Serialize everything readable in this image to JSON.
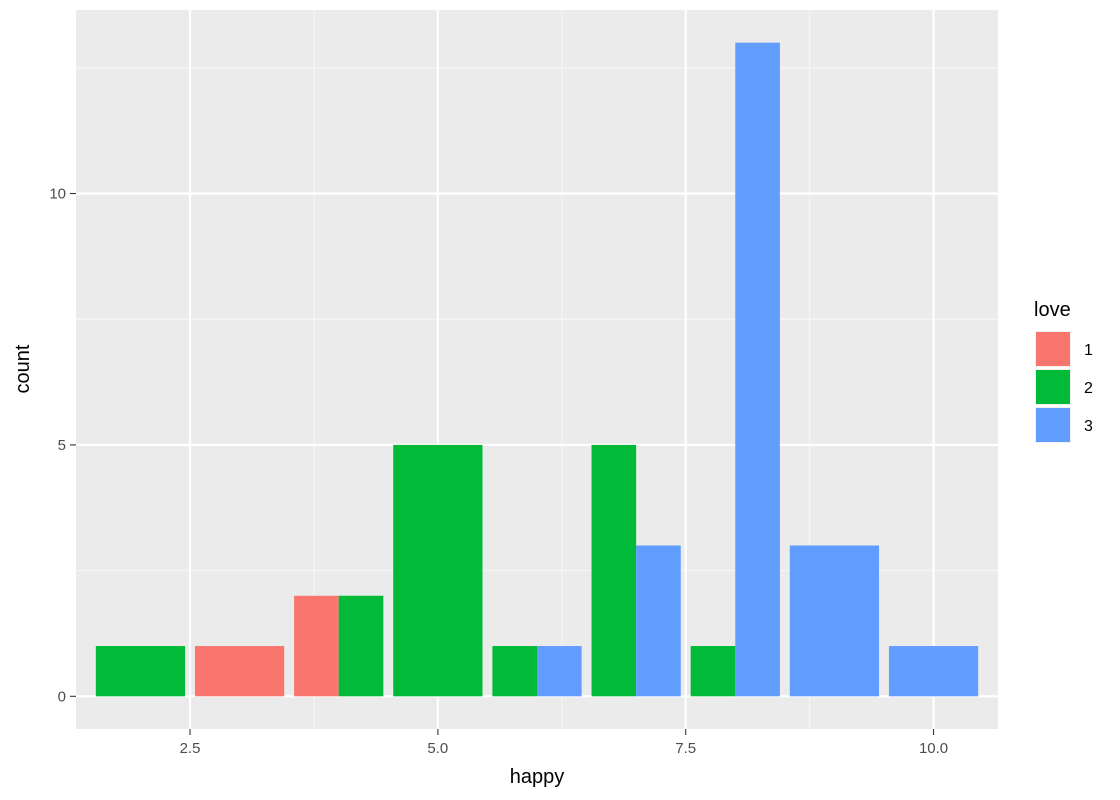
{
  "chart_data": {
    "type": "bar",
    "position": "dodge",
    "xlabel": "happy",
    "ylabel": "count",
    "xlim": [
      1.35,
      10.65
    ],
    "ylim": [
      -0.65,
      13.65
    ],
    "x_ticks": [
      {
        "value": 2.5,
        "label": "2.5"
      },
      {
        "value": 5.0,
        "label": "5.0"
      },
      {
        "value": 7.5,
        "label": "7.5"
      },
      {
        "value": 10.0,
        "label": "10.0"
      }
    ],
    "y_ticks": [
      {
        "value": 0,
        "label": "0"
      },
      {
        "value": 5,
        "label": "5"
      },
      {
        "value": 10,
        "label": "10"
      }
    ],
    "bar_width": 0.9,
    "legend": {
      "title": "love",
      "placement": "right",
      "entries": [
        {
          "label": "1",
          "color": "#F8766D"
        },
        {
          "label": "2",
          "color": "#00BA38"
        },
        {
          "label": "3",
          "color": "#619CFF"
        }
      ]
    },
    "bars": [
      {
        "happy": 2,
        "love": "2",
        "count": 1,
        "group_index": 0,
        "group_size": 1
      },
      {
        "happy": 3,
        "love": "1",
        "count": 1,
        "group_index": 0,
        "group_size": 1
      },
      {
        "happy": 4,
        "love": "1",
        "count": 2,
        "group_index": 0,
        "group_size": 2
      },
      {
        "happy": 4,
        "love": "2",
        "count": 2,
        "group_index": 1,
        "group_size": 2
      },
      {
        "happy": 5,
        "love": "2",
        "count": 5,
        "group_index": 0,
        "group_size": 1
      },
      {
        "happy": 6,
        "love": "2",
        "count": 1,
        "group_index": 0,
        "group_size": 2
      },
      {
        "happy": 6,
        "love": "3",
        "count": 1,
        "group_index": 1,
        "group_size": 2
      },
      {
        "happy": 7,
        "love": "2",
        "count": 5,
        "group_index": 0,
        "group_size": 2
      },
      {
        "happy": 7,
        "love": "3",
        "count": 3,
        "group_index": 1,
        "group_size": 2
      },
      {
        "happy": 8,
        "love": "2",
        "count": 1,
        "group_index": 0,
        "group_size": 2
      },
      {
        "happy": 8,
        "love": "3",
        "count": 13,
        "group_index": 1,
        "group_size": 2
      },
      {
        "happy": 9,
        "love": "3",
        "count": 3,
        "group_index": 0,
        "group_size": 1
      },
      {
        "happy": 10,
        "love": "3",
        "count": 1,
        "group_index": 0,
        "group_size": 1
      }
    ],
    "colors": {
      "panel_background": "#EBEBEB",
      "grid_major": "#FFFFFF",
      "grid_minor": "#F7F7F7",
      "tick_mark": "#333333"
    }
  }
}
